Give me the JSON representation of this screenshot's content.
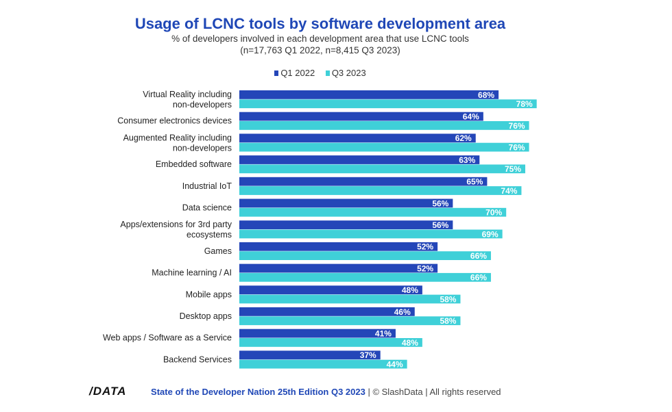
{
  "chart_data": {
    "type": "bar",
    "orientation": "horizontal",
    "title": "Usage of LCNC tools by software development area",
    "subtitle": [
      "% of developers involved in each development area that use LCNC tools",
      "(n=17,763 Q1 2022, n=8,415 Q3 2023)"
    ],
    "categories": [
      "Virtual Reality including non-developers",
      "Consumer electronics devices",
      "Augmented Reality including non-developers",
      "Embedded software",
      "Industrial IoT",
      "Data science",
      "Apps/extensions for 3rd party ecosystems",
      "Games",
      "Machine learning / AI",
      "Mobile apps",
      "Desktop apps",
      "Web apps / Software as a Service",
      "Backend Services"
    ],
    "series": [
      {
        "name": "Q1 2022",
        "color": "#2446b8",
        "values": [
          68,
          64,
          62,
          63,
          65,
          56,
          56,
          52,
          52,
          48,
          46,
          41,
          37
        ]
      },
      {
        "name": "Q3 2023",
        "color": "#3fd0d8",
        "values": [
          78,
          76,
          76,
          75,
          74,
          70,
          69,
          66,
          66,
          58,
          58,
          48,
          44
        ]
      }
    ],
    "value_suffix": "%",
    "legend_position": "top",
    "grid": false
  },
  "footer": {
    "logo": "/DATA",
    "source": "State of the Developer Nation 25th Edition Q3 2023",
    "rights": " | © SlashData | All rights reserved"
  }
}
